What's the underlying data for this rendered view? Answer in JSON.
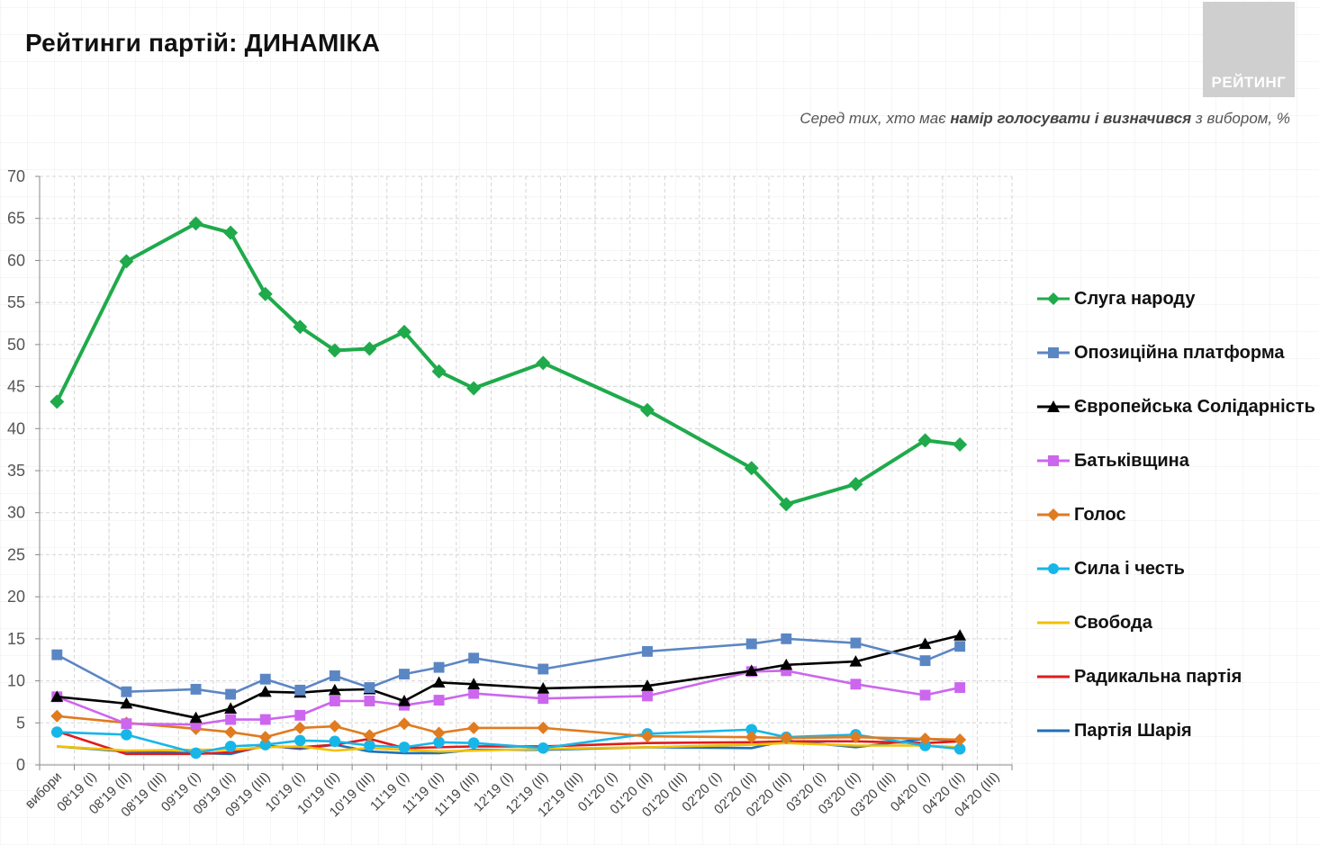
{
  "header": {
    "title": "Рейтинги партій: ДИНАМІКА",
    "logo_text": "РЕЙТИНГ",
    "subtitle_pre": "Серед тих, хто має ",
    "subtitle_bold": "намір голосувати і визначився",
    "subtitle_post": " з вибором, %"
  },
  "chart_data": {
    "type": "line",
    "title": "Рейтинги партій: ДИНАМІКА",
    "xlabel": "",
    "ylabel": "",
    "ylim": [
      0,
      70
    ],
    "yticks": [
      0,
      5,
      10,
      15,
      20,
      25,
      30,
      35,
      40,
      45,
      50,
      55,
      60,
      65,
      70
    ],
    "grid": true,
    "legend_position": "right",
    "categories": [
      "вибори",
      "08'19 (I)",
      "08'19 (II)",
      "08'19 (III)",
      "09'19 (I)",
      "09'19 (II)",
      "09'19 (III)",
      "10'19 (I)",
      "10'19 (II)",
      "10'19 (III)",
      "11'19 (I)",
      "11'19 (II)",
      "11'19 (III)",
      "12'19 (I)",
      "12'19 (II)",
      "12'19 (III)",
      "01'20 (I)",
      "01'20 (II)",
      "01'20 (III)",
      "02'20 (I)",
      "02'20 (II)",
      "02'20 (III)",
      "03'20 (I)",
      "03'20 (II)",
      "03'20 (III)",
      "04'20 (I)",
      "04'20 (II)",
      "04'20 (III)"
    ],
    "series": [
      {
        "name": "Слуга народу",
        "color": "#1faa4b",
        "marker": "diamond",
        "points": [
          [
            0,
            43.2
          ],
          [
            2,
            59.9
          ],
          [
            4,
            64.4
          ],
          [
            5,
            63.3
          ],
          [
            6,
            56
          ],
          [
            7,
            52.1
          ],
          [
            8,
            49.3
          ],
          [
            9,
            49.5
          ],
          [
            10,
            51.5
          ],
          [
            11,
            46.8
          ],
          [
            12,
            44.8
          ],
          [
            14,
            47.8
          ],
          [
            17,
            42.2
          ],
          [
            20,
            35.3
          ],
          [
            21,
            31
          ],
          [
            23,
            33.4
          ],
          [
            25,
            38.6
          ],
          [
            26,
            38.1
          ]
        ]
      },
      {
        "name": "Опозиційна платформа",
        "color": "#5b86c4",
        "marker": "square",
        "points": [
          [
            0,
            13.1
          ],
          [
            2,
            8.7
          ],
          [
            4,
            9
          ],
          [
            5,
            8.4
          ],
          [
            6,
            10.2
          ],
          [
            7,
            8.9
          ],
          [
            8,
            10.6
          ],
          [
            9,
            9.2
          ],
          [
            10,
            10.8
          ],
          [
            11,
            11.6
          ],
          [
            12,
            12.7
          ],
          [
            14,
            11.4
          ],
          [
            17,
            13.5
          ],
          [
            20,
            14.4
          ],
          [
            21,
            15
          ],
          [
            23,
            14.5
          ],
          [
            25,
            12.4
          ],
          [
            26,
            14.1
          ]
        ]
      },
      {
        "name": "Європейська Солідарність",
        "color": "#000000",
        "marker": "triangle",
        "points": [
          [
            0,
            8.1
          ],
          [
            2,
            7.3
          ],
          [
            4,
            5.6
          ],
          [
            5,
            6.7
          ],
          [
            6,
            8.7
          ],
          [
            7,
            8.6
          ],
          [
            8,
            8.9
          ],
          [
            9,
            9
          ],
          [
            10,
            7.6
          ],
          [
            11,
            9.8
          ],
          [
            12,
            9.6
          ],
          [
            14,
            9.1
          ],
          [
            17,
            9.4
          ],
          [
            20,
            11.2
          ],
          [
            21,
            11.9
          ],
          [
            23,
            12.3
          ],
          [
            25,
            14.4
          ],
          [
            26,
            15.4
          ]
        ]
      },
      {
        "name": "Батьківщина",
        "color": "#cc66ee",
        "marker": "square",
        "points": [
          [
            0,
            8.1
          ],
          [
            2,
            4.9
          ],
          [
            4,
            4.8
          ],
          [
            5,
            5.4
          ],
          [
            6,
            5.4
          ],
          [
            7,
            5.9
          ],
          [
            8,
            7.6
          ],
          [
            9,
            7.6
          ],
          [
            10,
            7.1
          ],
          [
            11,
            7.7
          ],
          [
            12,
            8.5
          ],
          [
            14,
            7.9
          ],
          [
            17,
            8.2
          ],
          [
            20,
            11.1
          ],
          [
            21,
            11.2
          ],
          [
            23,
            9.6
          ],
          [
            25,
            8.3
          ],
          [
            26,
            9.2
          ]
        ]
      },
      {
        "name": "Голос",
        "color": "#e07b1f",
        "marker": "diamond",
        "points": [
          [
            0,
            5.8
          ],
          [
            2,
            5
          ],
          [
            4,
            4.3
          ],
          [
            5,
            3.9
          ],
          [
            6,
            3.3
          ],
          [
            7,
            4.4
          ],
          [
            8,
            4.6
          ],
          [
            9,
            3.5
          ],
          [
            10,
            4.9
          ],
          [
            11,
            3.8
          ],
          [
            12,
            4.4
          ],
          [
            14,
            4.4
          ],
          [
            17,
            3.4
          ],
          [
            20,
            3.3
          ],
          [
            21,
            3.2
          ],
          [
            23,
            3.3
          ],
          [
            25,
            3.1
          ],
          [
            26,
            3
          ]
        ]
      },
      {
        "name": "Сила і честь",
        "color": "#17b6e8",
        "marker": "circle",
        "points": [
          [
            0,
            3.9
          ],
          [
            2,
            3.6
          ],
          [
            4,
            1.4
          ],
          [
            5,
            2.2
          ],
          [
            6,
            2.4
          ],
          [
            7,
            2.9
          ],
          [
            8,
            2.8
          ],
          [
            9,
            2.3
          ],
          [
            10,
            2.1
          ],
          [
            11,
            2.7
          ],
          [
            12,
            2.6
          ],
          [
            14,
            2
          ],
          [
            17,
            3.7
          ],
          [
            20,
            4.2
          ],
          [
            21,
            3.3
          ],
          [
            23,
            3.6
          ],
          [
            25,
            2.3
          ],
          [
            26,
            1.9
          ]
        ]
      },
      {
        "name": "Свобода",
        "color": "#f2c000",
        "marker": "none",
        "points": [
          [
            0,
            2.2
          ],
          [
            2,
            1.7
          ],
          [
            4,
            1.8
          ],
          [
            5,
            1.8
          ],
          [
            6,
            2.1
          ],
          [
            7,
            2.2
          ],
          [
            8,
            1.7
          ],
          [
            9,
            2
          ],
          [
            10,
            1.8
          ],
          [
            11,
            1.6
          ],
          [
            12,
            1.7
          ],
          [
            14,
            1.9
          ],
          [
            17,
            2.1
          ],
          [
            20,
            2.4
          ],
          [
            21,
            2.6
          ],
          [
            23,
            2.3
          ],
          [
            25,
            2.3
          ],
          [
            26,
            2.1
          ]
        ]
      },
      {
        "name": "Радикальна партія",
        "color": "#e01b1b",
        "marker": "none",
        "points": [
          [
            0,
            4
          ],
          [
            2,
            1.3
          ],
          [
            4,
            1.3
          ],
          [
            5,
            1.5
          ],
          [
            6,
            2.2
          ],
          [
            7,
            2.1
          ],
          [
            8,
            2.4
          ],
          [
            9,
            3.1
          ],
          [
            10,
            2
          ],
          [
            11,
            2.1
          ],
          [
            12,
            2.2
          ],
          [
            14,
            2.2
          ],
          [
            17,
            2.6
          ],
          [
            20,
            2.7
          ],
          [
            21,
            2.8
          ],
          [
            23,
            2.8
          ],
          [
            25,
            2.6
          ],
          [
            26,
            2.8
          ]
        ]
      },
      {
        "name": "Партія Шарія",
        "color": "#1f70b8",
        "marker": "none",
        "points": [
          [
            0,
            2.2
          ],
          [
            2,
            1.6
          ],
          [
            4,
            1.4
          ],
          [
            5,
            1.3
          ],
          [
            6,
            2.3
          ],
          [
            7,
            1.9
          ],
          [
            8,
            2.4
          ],
          [
            9,
            1.6
          ],
          [
            10,
            1.4
          ],
          [
            11,
            1.4
          ],
          [
            12,
            1.8
          ],
          [
            14,
            1.8
          ],
          [
            17,
            2.1
          ],
          [
            20,
            2
          ],
          [
            21,
            2.9
          ],
          [
            23,
            2.1
          ],
          [
            25,
            3.1
          ],
          [
            26,
            2.9
          ]
        ]
      }
    ]
  }
}
